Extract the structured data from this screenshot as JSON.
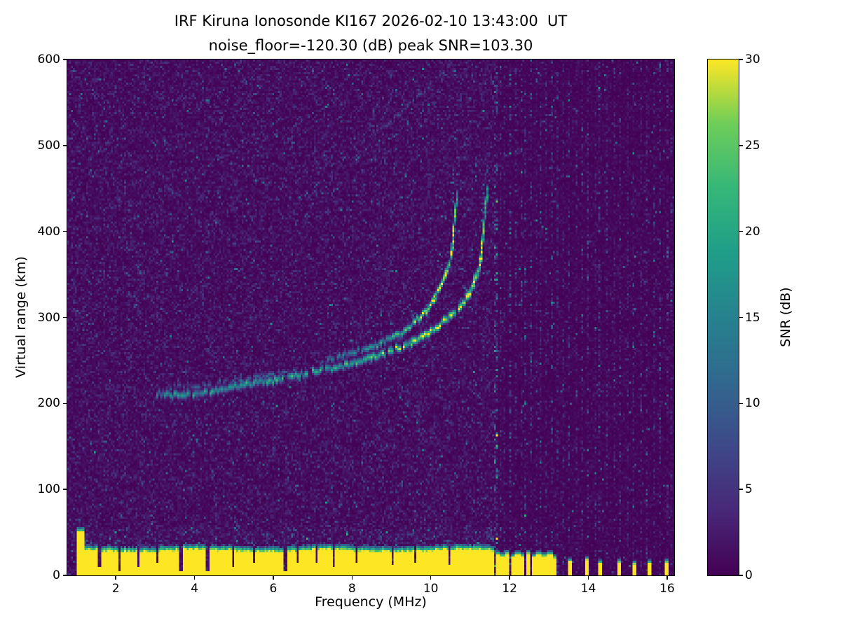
{
  "chart_data": {
    "type": "heatmap",
    "title": "IRF Kiruna Ionosonde KI167 2026-02-10 13:43:00  UT",
    "subtitle": "noise_floor=-120.30 (dB) peak SNR=103.30",
    "xlabel": "Frequency (MHz)",
    "ylabel": "Virtual range (km)",
    "xlim": [
      0.77,
      16.18
    ],
    "ylim": [
      0,
      600
    ],
    "xticks": [
      2,
      4,
      6,
      8,
      10,
      12,
      14,
      16
    ],
    "yticks": [
      0,
      100,
      200,
      300,
      400,
      500,
      600
    ],
    "colorbar": {
      "label": "SNR (dB)",
      "min": 0,
      "max": 30,
      "ticks": [
        0,
        5,
        10,
        15,
        20,
        25,
        30
      ],
      "colormap": "viridis"
    },
    "colors": {
      "background": "#ffffff",
      "spine": "#000000",
      "text": "#000000"
    },
    "colormap_stops": [
      [
        68,
        1,
        84
      ],
      [
        72,
        40,
        120
      ],
      [
        62,
        73,
        137
      ],
      [
        49,
        104,
        142
      ],
      [
        38,
        130,
        142
      ],
      [
        31,
        158,
        137
      ],
      [
        53,
        183,
        121
      ],
      [
        109,
        205,
        89
      ],
      [
        253,
        231,
        37
      ]
    ],
    "seed": 1337,
    "grid": {
      "nx": 320,
      "ny": 245
    },
    "noise": {
      "split_freq": 11.62,
      "mean_left": 1.5,
      "mean_right": 0.7,
      "speckle_prob": 0.006,
      "speckle_min": 5,
      "speckle_span": 7
    },
    "ground_clutter": {
      "fmin": 1.03,
      "fmax": 11.62,
      "base_height": 27,
      "tall_below": 1.2,
      "tall_height": 50,
      "notches": [
        {
          "f": 1.58,
          "w": 0.07,
          "floor": 9
        },
        {
          "f": 2.1,
          "w": 0.08,
          "floor": 6
        },
        {
          "f": 2.56,
          "w": 0.06,
          "floor": 11
        },
        {
          "f": 3.06,
          "w": 0.05,
          "floor": 14
        },
        {
          "f": 3.66,
          "w": 0.1,
          "floor": 5
        },
        {
          "f": 4.32,
          "w": 0.1,
          "floor": 5
        },
        {
          "f": 4.98,
          "w": 0.06,
          "floor": 10
        },
        {
          "f": 5.52,
          "w": 0.05,
          "floor": 14
        },
        {
          "f": 6.3,
          "w": 0.1,
          "floor": 5
        },
        {
          "f": 6.64,
          "w": 0.05,
          "floor": 15
        },
        {
          "f": 7.1,
          "w": 0.05,
          "floor": 14
        },
        {
          "f": 7.54,
          "w": 0.07,
          "floor": 9
        },
        {
          "f": 8.1,
          "w": 0.05,
          "floor": 15
        },
        {
          "f": 9.04,
          "w": 0.06,
          "floor": 12
        },
        {
          "f": 9.62,
          "w": 0.05,
          "floor": 14
        },
        {
          "f": 10.48,
          "w": 0.05,
          "floor": 13
        }
      ]
    },
    "bottom_stubs": [
      {
        "f": 11.7,
        "h": 24,
        "w": 0.06
      },
      {
        "f": 11.82,
        "h": 22,
        "w": 0.06
      },
      {
        "f": 11.95,
        "h": 25,
        "w": 0.06
      },
      {
        "f": 12.08,
        "h": 21,
        "w": 0.06
      },
      {
        "f": 12.21,
        "h": 24,
        "w": 0.06
      },
      {
        "f": 12.34,
        "h": 22,
        "w": 0.06
      },
      {
        "f": 12.47,
        "h": 25,
        "w": 0.06
      },
      {
        "f": 12.6,
        "h": 21,
        "w": 0.06
      },
      {
        "f": 12.74,
        "h": 24,
        "w": 0.06
      },
      {
        "f": 12.88,
        "h": 22,
        "w": 0.06
      },
      {
        "f": 13.02,
        "h": 24,
        "w": 0.06
      },
      {
        "f": 13.15,
        "h": 20,
        "w": 0.06
      },
      {
        "f": 13.52,
        "h": 16,
        "w": 0.05
      },
      {
        "f": 13.98,
        "h": 18,
        "w": 0.06
      },
      {
        "f": 14.29,
        "h": 14,
        "w": 0.05
      },
      {
        "f": 14.77,
        "h": 15,
        "w": 0.05
      },
      {
        "f": 15.18,
        "h": 13,
        "w": 0.05
      },
      {
        "f": 15.56,
        "h": 14,
        "w": 0.05
      },
      {
        "f": 16.0,
        "h": 15,
        "w": 0.05
      }
    ],
    "interference_columns": [
      {
        "f": 11.63,
        "amp": 6.5,
        "w": 2
      },
      {
        "f": 11.76,
        "amp": 3.0,
        "w": 1
      },
      {
        "f": 11.89,
        "amp": 2.6,
        "w": 1
      },
      {
        "f": 12.02,
        "amp": 4.0,
        "w": 1
      },
      {
        "f": 12.15,
        "amp": 2.6,
        "w": 1
      },
      {
        "f": 12.28,
        "amp": 3.2,
        "w": 1
      },
      {
        "f": 12.41,
        "amp": 2.6,
        "w": 1
      },
      {
        "f": 12.54,
        "amp": 3.0,
        "w": 1
      },
      {
        "f": 12.67,
        "amp": 2.4,
        "w": 1
      },
      {
        "f": 12.8,
        "amp": 3.4,
        "w": 1
      },
      {
        "f": 12.93,
        "amp": 2.4,
        "w": 1
      },
      {
        "f": 13.06,
        "amp": 3.0,
        "w": 1
      },
      {
        "f": 13.22,
        "amp": 2.2,
        "w": 1
      },
      {
        "f": 13.38,
        "amp": 2.0,
        "w": 1
      },
      {
        "f": 13.52,
        "amp": 3.0,
        "w": 1
      },
      {
        "f": 13.7,
        "amp": 2.2,
        "w": 1
      },
      {
        "f": 13.86,
        "amp": 2.6,
        "w": 1
      },
      {
        "f": 14.0,
        "amp": 3.4,
        "w": 1
      },
      {
        "f": 14.16,
        "amp": 2.2,
        "w": 1
      },
      {
        "f": 14.3,
        "amp": 3.0,
        "w": 1
      },
      {
        "f": 14.48,
        "amp": 2.2,
        "w": 1
      },
      {
        "f": 14.64,
        "amp": 2.6,
        "w": 1
      },
      {
        "f": 14.8,
        "amp": 3.2,
        "w": 1
      },
      {
        "f": 14.98,
        "amp": 2.2,
        "w": 1
      },
      {
        "f": 15.16,
        "amp": 3.0,
        "w": 1
      },
      {
        "f": 15.34,
        "amp": 2.2,
        "w": 1
      },
      {
        "f": 15.5,
        "amp": 2.6,
        "w": 1
      },
      {
        "f": 15.66,
        "amp": 2.2,
        "w": 1
      },
      {
        "f": 15.84,
        "amp": 3.0,
        "w": 1
      },
      {
        "f": 16.0,
        "amp": 2.6,
        "w": 1
      },
      {
        "f": 16.12,
        "amp": 2.2,
        "w": 1
      }
    ],
    "traces": [
      {
        "name": "F-trace-ordinary",
        "points": [
          [
            3.05,
            212
          ],
          [
            3.5,
            209
          ],
          [
            4.0,
            211
          ],
          [
            4.5,
            214
          ],
          [
            5.0,
            219
          ],
          [
            5.5,
            223
          ],
          [
            6.0,
            227
          ],
          [
            6.5,
            231
          ],
          [
            7.0,
            236
          ],
          [
            7.5,
            241
          ],
          [
            8.0,
            247
          ],
          [
            8.5,
            254
          ],
          [
            9.0,
            262
          ],
          [
            9.5,
            271
          ],
          [
            10.0,
            283
          ],
          [
            10.4,
            297
          ],
          [
            10.7,
            311
          ],
          [
            10.95,
            327
          ],
          [
            11.1,
            342
          ],
          [
            11.22,
            360
          ],
          [
            11.3,
            380
          ],
          [
            11.36,
            403
          ],
          [
            11.4,
            425
          ],
          [
            11.44,
            447
          ]
        ],
        "intensity": [
          13,
          15,
          16,
          16,
          16,
          17,
          18,
          18,
          17,
          18,
          19,
          20,
          22,
          24,
          26,
          27,
          28,
          28,
          27,
          26,
          24,
          22,
          19,
          16
        ],
        "sigma": 1.1,
        "dropout": 0.06,
        "spread": {
          "fmin": 10.9,
          "prob": 0.35,
          "extent": 45
        }
      },
      {
        "name": "F-trace-extraordinary",
        "points": [
          [
            7.4,
            250
          ],
          [
            8.0,
            258
          ],
          [
            8.5,
            266
          ],
          [
            9.0,
            276
          ],
          [
            9.3,
            284
          ],
          [
            9.6,
            295
          ],
          [
            9.9,
            308
          ],
          [
            10.1,
            321
          ],
          [
            10.25,
            335
          ],
          [
            10.4,
            352
          ],
          [
            10.5,
            372
          ],
          [
            10.58,
            395
          ],
          [
            10.64,
            420
          ],
          [
            10.68,
            445
          ]
        ],
        "intensity": [
          11,
          13,
          15,
          18,
          20,
          23,
          26,
          27,
          27,
          26,
          25,
          23,
          20,
          16
        ],
        "sigma": 1.0,
        "dropout": 0.08,
        "spread": {
          "fmin": 10.15,
          "prob": 0.4,
          "extent": 85
        }
      },
      {
        "name": "faint-double-trace",
        "points": [
          [
            3.3,
            219
          ],
          [
            4.0,
            220
          ],
          [
            4.7,
            223
          ],
          [
            5.4,
            228
          ],
          [
            6.0,
            234
          ],
          [
            6.6,
            240
          ]
        ],
        "intensity": [
          7,
          9,
          9,
          10,
          9,
          8
        ],
        "sigma": 0.8,
        "dropout": 0.35
      },
      {
        "name": "faint-high-multihop-trace",
        "points": [
          [
            8.0,
            495
          ],
          [
            8.6,
            515
          ],
          [
            9.2,
            538
          ],
          [
            9.8,
            562
          ],
          [
            10.3,
            585
          ],
          [
            10.55,
            600
          ]
        ],
        "intensity": [
          5,
          6,
          6,
          7,
          6,
          5
        ],
        "sigma": 0.7,
        "dropout": 0.5
      }
    ]
  }
}
